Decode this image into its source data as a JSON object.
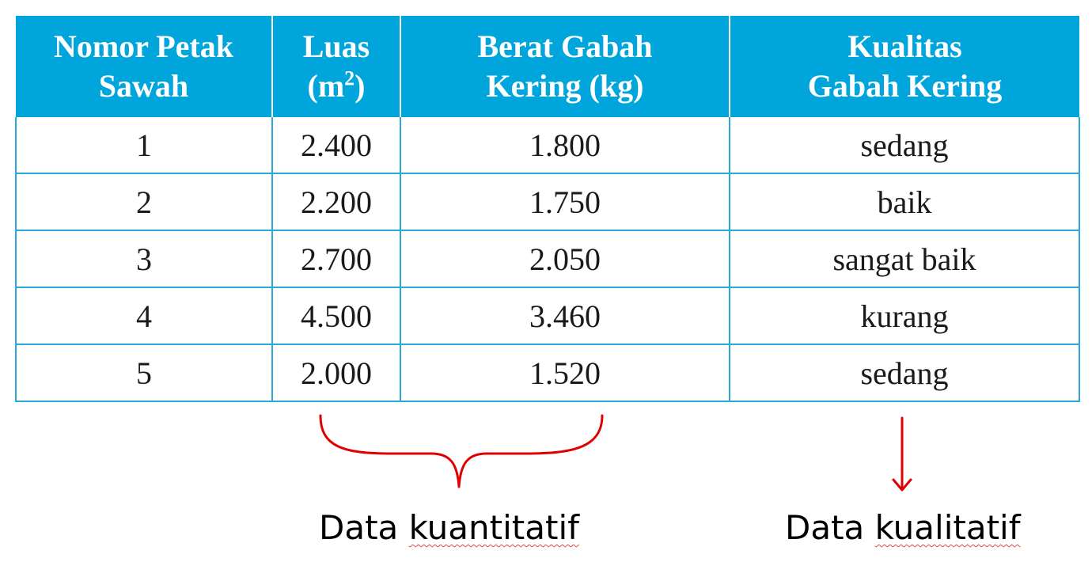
{
  "table": {
    "headers": [
      {
        "line1": "Nomor Petak",
        "line2": "Sawah",
        "sup": ""
      },
      {
        "line1": "Luas",
        "line2_pre": "(m",
        "sup": "2",
        "line2_post": ")"
      },
      {
        "line1": "Berat Gabah",
        "line2": "Kering (kg)",
        "sup": ""
      },
      {
        "line1": "Kualitas",
        "line2": "Gabah Kering",
        "sup": ""
      }
    ],
    "rows": [
      [
        "1",
        "2.400",
        "1.800",
        "sedang"
      ],
      [
        "2",
        "2.200",
        "1.750",
        "baik"
      ],
      [
        "3",
        "2.700",
        "2.050",
        "sangat baik"
      ],
      [
        "4",
        "4.500",
        "3.460",
        "kurang"
      ],
      [
        "5",
        "2.000",
        "1.520",
        "sedang"
      ]
    ]
  },
  "annotations": {
    "quantitative": {
      "word1": "Data",
      "word2": "kuantitatif"
    },
    "qualitative": {
      "word1": "Data",
      "word2": "kualitatif"
    }
  },
  "colors": {
    "header_bg": "#00a5dc",
    "border": "#2aa8dc",
    "annotation_red": "#e00000"
  }
}
